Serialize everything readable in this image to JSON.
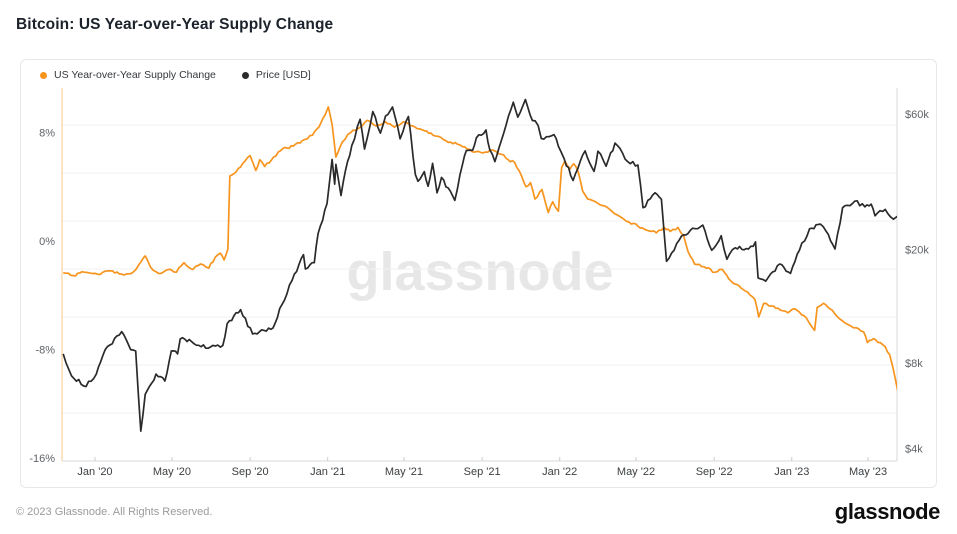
{
  "title": "Bitcoin: US Year-over-Year Supply Change",
  "legend": [
    {
      "label": "US Year-over-Year Supply Change",
      "color": "#f7941d"
    },
    {
      "label": "Price [USD]",
      "color": "#2a2a2a"
    }
  ],
  "watermark": "glassnode",
  "footer": {
    "copyright": "© 2023 Glassnode. All Rights Reserved.",
    "brand": "glassnode"
  },
  "colors": {
    "supply_line": "#f7941d",
    "price_line": "#2a2a2a",
    "grid": "#f2f2f2",
    "axis_line": "#d9d9d9",
    "left_axis_line": "rgba(247,148,29,0.5)",
    "tick": "#cccccc"
  },
  "chart_data": {
    "type": "line",
    "title": "Bitcoin: US Year-over-Year Supply Change",
    "x_axis": {
      "ticks": [
        "Jan '20",
        "May '20",
        "Sep '20",
        "Jan '21",
        "May '21",
        "Sep '21",
        "Jan '22",
        "May '22",
        "Sep '22",
        "Jan '23",
        "May '23"
      ],
      "tick_dates": [
        "2020-01-01",
        "2020-05-01",
        "2020-09-01",
        "2021-01-01",
        "2021-05-01",
        "2021-09-01",
        "2022-01-01",
        "2022-05-01",
        "2022-09-01",
        "2023-01-01",
        "2023-05-01"
      ],
      "range": [
        "2019-11-10",
        "2023-06-24"
      ]
    },
    "y_left": {
      "ticks": [
        "8%",
        "0%",
        "-8%",
        "-16%"
      ],
      "tick_values": [
        8,
        0,
        -8,
        -16
      ],
      "scale": "linear",
      "unit": "%"
    },
    "y_right": {
      "ticks": [
        "$60k",
        "$20k",
        "$8k",
        "$4k"
      ],
      "tick_values": [
        60000,
        20000,
        8000,
        4000
      ],
      "scale": "log",
      "unit": "USD"
    },
    "series": [
      {
        "name": "US Year-over-Year Supply Change",
        "axis": "left",
        "color": "#f7941d",
        "points": [
          [
            "2019-11-12",
            -2.35
          ],
          [
            "2019-11-28",
            -2.55
          ],
          [
            "2019-12-15",
            -2.3
          ],
          [
            "2020-01-05",
            -2.45
          ],
          [
            "2020-01-25",
            -2.2
          ],
          [
            "2020-02-12",
            -2.45
          ],
          [
            "2020-03-01",
            -2.3
          ],
          [
            "2020-03-14",
            -1.5
          ],
          [
            "2020-03-20",
            -1.1
          ],
          [
            "2020-03-28",
            -1.9
          ],
          [
            "2020-04-10",
            -2.4
          ],
          [
            "2020-04-25",
            -2.1
          ],
          [
            "2020-05-08",
            -2.3
          ],
          [
            "2020-05-20",
            -1.6
          ],
          [
            "2020-06-03",
            -2.1
          ],
          [
            "2020-06-15",
            -1.7
          ],
          [
            "2020-06-28",
            -2.0
          ],
          [
            "2020-07-08",
            -1.2
          ],
          [
            "2020-07-16",
            -0.9
          ],
          [
            "2020-07-22",
            -1.4
          ],
          [
            "2020-07-28",
            -0.6
          ],
          [
            "2020-07-31",
            4.8
          ],
          [
            "2020-08-10",
            5.1
          ],
          [
            "2020-08-20",
            5.7
          ],
          [
            "2020-09-01",
            6.3
          ],
          [
            "2020-09-10",
            5.2
          ],
          [
            "2020-09-16",
            6.0
          ],
          [
            "2020-09-24",
            5.5
          ],
          [
            "2020-10-08",
            6.2
          ],
          [
            "2020-10-22",
            6.8
          ],
          [
            "2020-11-08",
            7.0
          ],
          [
            "2020-11-22",
            7.4
          ],
          [
            "2020-12-08",
            7.8
          ],
          [
            "2020-12-18",
            8.4
          ],
          [
            "2020-12-28",
            9.3
          ],
          [
            "2021-01-02",
            9.9
          ],
          [
            "2021-01-08",
            8.6
          ],
          [
            "2021-01-14",
            6.2
          ],
          [
            "2021-01-24",
            7.3
          ],
          [
            "2021-02-06",
            8.0
          ],
          [
            "2021-02-18",
            8.3
          ],
          [
            "2021-03-04",
            8.9
          ],
          [
            "2021-03-18",
            8.5
          ],
          [
            "2021-04-02",
            8.8
          ],
          [
            "2021-04-16",
            8.4
          ],
          [
            "2021-04-30",
            8.8
          ],
          [
            "2021-05-14",
            8.5
          ],
          [
            "2021-05-30",
            8.2
          ],
          [
            "2021-06-16",
            7.8
          ],
          [
            "2021-07-06",
            7.4
          ],
          [
            "2021-07-28",
            7.1
          ],
          [
            "2021-08-16",
            6.6
          ],
          [
            "2021-09-02",
            6.5
          ],
          [
            "2021-09-18",
            6.7
          ],
          [
            "2021-10-01",
            6.4
          ],
          [
            "2021-10-12",
            6.0
          ],
          [
            "2021-10-22",
            5.8
          ],
          [
            "2021-11-02",
            4.8
          ],
          [
            "2021-11-09",
            4.0
          ],
          [
            "2021-11-16",
            4.3
          ],
          [
            "2021-11-23",
            3.1
          ],
          [
            "2021-12-04",
            3.8
          ],
          [
            "2021-12-14",
            2.1
          ],
          [
            "2021-12-21",
            2.9
          ],
          [
            "2021-12-30",
            2.2
          ],
          [
            "2022-01-04",
            5.4
          ],
          [
            "2022-01-09",
            5.9
          ],
          [
            "2022-01-17",
            5.3
          ],
          [
            "2022-01-23",
            5.7
          ],
          [
            "2022-01-30",
            5.1
          ],
          [
            "2022-02-06",
            3.7
          ],
          [
            "2022-02-14",
            3.1
          ],
          [
            "2022-02-26",
            2.9
          ],
          [
            "2022-03-12",
            2.6
          ],
          [
            "2022-03-24",
            2.2
          ],
          [
            "2022-04-06",
            1.8
          ],
          [
            "2022-04-20",
            1.4
          ],
          [
            "2022-05-04",
            1.1
          ],
          [
            "2022-05-18",
            0.8
          ],
          [
            "2022-06-02",
            0.6
          ],
          [
            "2022-06-14",
            1.0
          ],
          [
            "2022-06-24",
            0.7
          ],
          [
            "2022-07-06",
            1.0
          ],
          [
            "2022-07-15",
            0.4
          ],
          [
            "2022-07-22",
            -0.8
          ],
          [
            "2022-08-01",
            -1.7
          ],
          [
            "2022-08-16",
            -1.9
          ],
          [
            "2022-09-02",
            -2.3
          ],
          [
            "2022-09-14",
            -2.1
          ],
          [
            "2022-09-24",
            -2.8
          ],
          [
            "2022-10-06",
            -3.2
          ],
          [
            "2022-10-20",
            -3.7
          ],
          [
            "2022-11-04",
            -4.3
          ],
          [
            "2022-11-10",
            -5.6
          ],
          [
            "2022-11-18",
            -4.6
          ],
          [
            "2022-11-30",
            -4.8
          ],
          [
            "2022-12-14",
            -5.1
          ],
          [
            "2022-12-26",
            -5.3
          ],
          [
            "2023-01-06",
            -5.0
          ],
          [
            "2023-01-20",
            -5.5
          ],
          [
            "2023-02-01",
            -6.3
          ],
          [
            "2023-02-06",
            -6.6
          ],
          [
            "2023-02-10",
            -4.9
          ],
          [
            "2023-02-20",
            -4.6
          ],
          [
            "2023-03-02",
            -5.0
          ],
          [
            "2023-03-14",
            -5.6
          ],
          [
            "2023-03-28",
            -6.1
          ],
          [
            "2023-04-12",
            -6.4
          ],
          [
            "2023-04-24",
            -6.7
          ],
          [
            "2023-04-30",
            -7.5
          ],
          [
            "2023-05-10",
            -7.2
          ],
          [
            "2023-05-20",
            -7.5
          ],
          [
            "2023-05-28",
            -7.8
          ],
          [
            "2023-06-04",
            -8.4
          ],
          [
            "2023-06-09",
            -9.3
          ],
          [
            "2023-06-13",
            -10.2
          ],
          [
            "2023-06-18",
            -11.4
          ]
        ]
      },
      {
        "name": "Price [USD]",
        "axis": "right",
        "color": "#2a2a2a",
        "points": [
          [
            "2019-11-12",
            8600
          ],
          [
            "2019-11-25",
            7200
          ],
          [
            "2019-12-18",
            6600
          ],
          [
            "2020-01-03",
            7300
          ],
          [
            "2020-01-17",
            8900
          ],
          [
            "2020-02-12",
            10300
          ],
          [
            "2020-02-26",
            8900
          ],
          [
            "2020-03-05",
            8800
          ],
          [
            "2020-03-13",
            4600
          ],
          [
            "2020-03-20",
            6200
          ],
          [
            "2020-04-06",
            7300
          ],
          [
            "2020-04-20",
            6900
          ],
          [
            "2020-04-30",
            8800
          ],
          [
            "2020-05-10",
            8600
          ],
          [
            "2020-05-14",
            9700
          ],
          [
            "2020-06-01",
            9500
          ],
          [
            "2020-06-27",
            9000
          ],
          [
            "2020-07-20",
            9200
          ],
          [
            "2020-07-27",
            11000
          ],
          [
            "2020-08-17",
            12300
          ],
          [
            "2020-09-05",
            10100
          ],
          [
            "2020-09-23",
            10400
          ],
          [
            "2020-10-07",
            10600
          ],
          [
            "2020-10-21",
            12800
          ],
          [
            "2020-11-06",
            15600
          ],
          [
            "2020-11-24",
            19200
          ],
          [
            "2020-11-27",
            17100
          ],
          [
            "2020-12-11",
            18000
          ],
          [
            "2020-12-17",
            22800
          ],
          [
            "2020-12-31",
            29000
          ],
          [
            "2021-01-08",
            41500
          ],
          [
            "2021-01-12",
            34000
          ],
          [
            "2021-01-14",
            39900
          ],
          [
            "2021-01-22",
            31000
          ],
          [
            "2021-01-29",
            38000
          ],
          [
            "2021-02-08",
            46500
          ],
          [
            "2021-02-21",
            57500
          ],
          [
            "2021-02-28",
            45200
          ],
          [
            "2021-03-13",
            61200
          ],
          [
            "2021-03-25",
            51400
          ],
          [
            "2021-04-02",
            59000
          ],
          [
            "2021-04-13",
            63500
          ],
          [
            "2021-04-25",
            49100
          ],
          [
            "2021-05-08",
            58800
          ],
          [
            "2021-05-19",
            36700
          ],
          [
            "2021-05-23",
            34800
          ],
          [
            "2021-06-02",
            37600
          ],
          [
            "2021-06-08",
            33400
          ],
          [
            "2021-06-15",
            40200
          ],
          [
            "2021-06-22",
            31700
          ],
          [
            "2021-06-29",
            35900
          ],
          [
            "2021-07-20",
            29800
          ],
          [
            "2021-08-01",
            39900
          ],
          [
            "2021-08-07",
            44600
          ],
          [
            "2021-08-17",
            44700
          ],
          [
            "2021-08-23",
            49500
          ],
          [
            "2021-09-07",
            52700
          ],
          [
            "2021-09-13",
            44900
          ],
          [
            "2021-09-21",
            40800
          ],
          [
            "2021-10-01",
            48200
          ],
          [
            "2021-10-20",
            66000
          ],
          [
            "2021-10-27",
            58500
          ],
          [
            "2021-11-08",
            67500
          ],
          [
            "2021-11-19",
            56900
          ],
          [
            "2021-11-28",
            54700
          ],
          [
            "2021-12-03",
            49200
          ],
          [
            "2021-12-23",
            50800
          ],
          [
            "2021-12-30",
            46200
          ],
          [
            "2022-01-08",
            41700
          ],
          [
            "2022-01-22",
            35000
          ],
          [
            "2022-02-10",
            44500
          ],
          [
            "2022-02-24",
            37700
          ],
          [
            "2022-03-02",
            44400
          ],
          [
            "2022-03-15",
            39300
          ],
          [
            "2022-03-29",
            47400
          ],
          [
            "2022-04-18",
            40800
          ],
          [
            "2022-05-04",
            39700
          ],
          [
            "2022-05-12",
            28100
          ],
          [
            "2022-05-31",
            31700
          ],
          [
            "2022-06-10",
            30100
          ],
          [
            "2022-06-18",
            18200
          ],
          [
            "2022-06-30",
            19900
          ],
          [
            "2022-07-08",
            21600
          ],
          [
            "2022-07-29",
            23800
          ],
          [
            "2022-08-14",
            24400
          ],
          [
            "2022-08-28",
            19900
          ],
          [
            "2022-09-12",
            22400
          ],
          [
            "2022-09-21",
            18500
          ],
          [
            "2022-10-04",
            20300
          ],
          [
            "2022-10-25",
            20100
          ],
          [
            "2022-11-05",
            21300
          ],
          [
            "2022-11-09",
            15900
          ],
          [
            "2022-11-21",
            15500
          ],
          [
            "2022-12-13",
            17800
          ],
          [
            "2022-12-30",
            16500
          ],
          [
            "2023-01-13",
            19900
          ],
          [
            "2023-01-29",
            23700
          ],
          [
            "2023-02-15",
            24600
          ],
          [
            "2023-02-24",
            23200
          ],
          [
            "2023-03-10",
            20100
          ],
          [
            "2023-03-22",
            28100
          ],
          [
            "2023-04-10",
            29600
          ],
          [
            "2023-04-26",
            28300
          ],
          [
            "2023-05-06",
            28900
          ],
          [
            "2023-05-12",
            26300
          ],
          [
            "2023-05-28",
            27700
          ],
          [
            "2023-06-10",
            25600
          ],
          [
            "2023-06-20",
            26300
          ]
        ]
      }
    ],
    "legend_position": "top-left",
    "grid": "horizontal-only"
  }
}
